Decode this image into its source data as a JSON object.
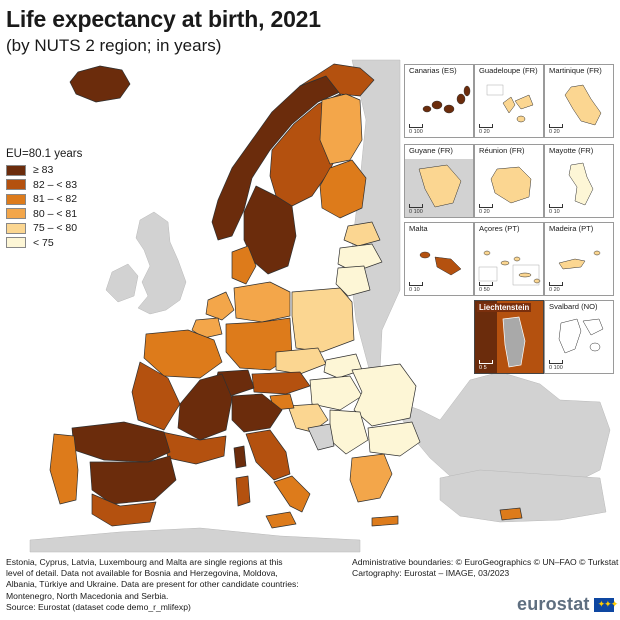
{
  "header": {
    "title": "Life expectancy at birth, 2021",
    "subtitle": "(by NUTS 2 region; in years)"
  },
  "legend": {
    "title": "EU=80.1 years",
    "items": [
      {
        "label": "≥ 83",
        "color": "#6b2c0c"
      },
      {
        "label": "82 – < 83",
        "color": "#b4510f"
      },
      {
        "label": "81 – < 82",
        "color": "#dd7b1b"
      },
      {
        "label": "80 – < 81",
        "color": "#f3a64a"
      },
      {
        "label": "75 – < 80",
        "color": "#fbd691"
      },
      {
        "label": "< 75",
        "color": "#fdf6d6"
      }
    ]
  },
  "colors": {
    "no_data": "#d2d2d2",
    "sea": "#ffffff",
    "border": "#303030"
  },
  "insets": [
    {
      "name": "Canarias (ES)",
      "scale": [
        "0",
        "100"
      ],
      "fill": "#6b2c0c"
    },
    {
      "name": "Guadeloupe (FR)",
      "scale": [
        "0",
        "20"
      ],
      "fill": "#fbd691"
    },
    {
      "name": "Martinique (FR)",
      "scale": [
        "0",
        "20"
      ],
      "fill": "#fbd691"
    },
    {
      "name": "Guyane (FR)",
      "scale": [
        "0",
        "100"
      ],
      "fill": "#fbd691"
    },
    {
      "name": "Réunion (FR)",
      "scale": [
        "0",
        "20"
      ],
      "fill": "#fbd691"
    },
    {
      "name": "Mayotte (FR)",
      "scale": [
        "0",
        "10"
      ],
      "fill": "#fdf6d6"
    },
    {
      "name": "Malta",
      "scale": [
        "0",
        "10"
      ],
      "fill": "#b4510f"
    },
    {
      "name": "Açores (PT)",
      "scale": [
        "0",
        "50"
      ],
      "fill": "#fbd691"
    },
    {
      "name": "Madeira (PT)",
      "scale": [
        "0",
        "20"
      ],
      "fill": "#fbd691"
    },
    {
      "name": "Liechtenstein",
      "scale": [
        "0",
        "5"
      ],
      "fill": "#6b2c0c"
    },
    {
      "name": "Svalbard (NO)",
      "scale": [
        "0",
        "100"
      ],
      "fill": "#ffffff"
    }
  ],
  "footnote": {
    "lines": [
      "Estonia, Cyprus, Latvia, Luxembourg and Malta are single regions at this",
      "level of detail. Data not available for Bosnia and Herzegovina, Moldova,",
      "Albania, Türkiye and Ukraine. Data are present for other candidate countries:",
      "Montenegro, North Macedonia and Serbia.",
      "Source: Eurostat (dataset code demo_r_mlifexp)"
    ]
  },
  "credits": {
    "line1": "Administrative boundaries: © EuroGeographics © UN–FAO © Turkstat",
    "line2": "Cartography: Eurostat – IMAGE, 03/2023"
  },
  "brand": {
    "name": "eurostat",
    "flag": "EU flag"
  }
}
